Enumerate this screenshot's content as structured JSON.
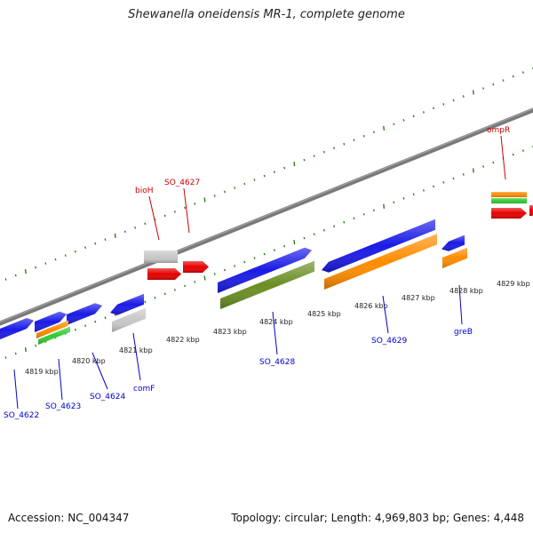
{
  "title": "Shewanella oneidensis MR-1, complete genome",
  "footer": {
    "accession": "Accession: NC_004347",
    "summary": "Topology: circular; Length: 4,969,803 bp; Genes: 4,448"
  },
  "colors": {
    "backbone": "#7a7a7a",
    "tick": "#2e7d1e",
    "blue": "#1a1ae6",
    "red": "#e60000",
    "orange": "#ff8c00",
    "green": "#33cc33",
    "gray": "#c8c8c8",
    "olive": "#6b8e23",
    "label_top": "#cc0000",
    "label_bottom": "#0000cc"
  },
  "positions": [
    {
      "label": "4819 kbp"
    },
    {
      "label": "4820 kbp"
    },
    {
      "label": "4821 kbp"
    },
    {
      "label": "4822 kbp"
    },
    {
      "label": "4823 kbp"
    },
    {
      "label": "4824 kbp"
    },
    {
      "label": "4825 kbp"
    },
    {
      "label": "4826 kbp"
    },
    {
      "label": "4827 kbp"
    },
    {
      "label": "4828 kbp"
    },
    {
      "label": "4829 kbp"
    }
  ],
  "genes_top": [
    "bioH",
    "SO_4627",
    "ompR"
  ],
  "genes_bottom": [
    "SO_4622",
    "SO_4623",
    "SO_4624",
    "comF",
    "SO_4628",
    "SO_4629",
    "greB"
  ]
}
